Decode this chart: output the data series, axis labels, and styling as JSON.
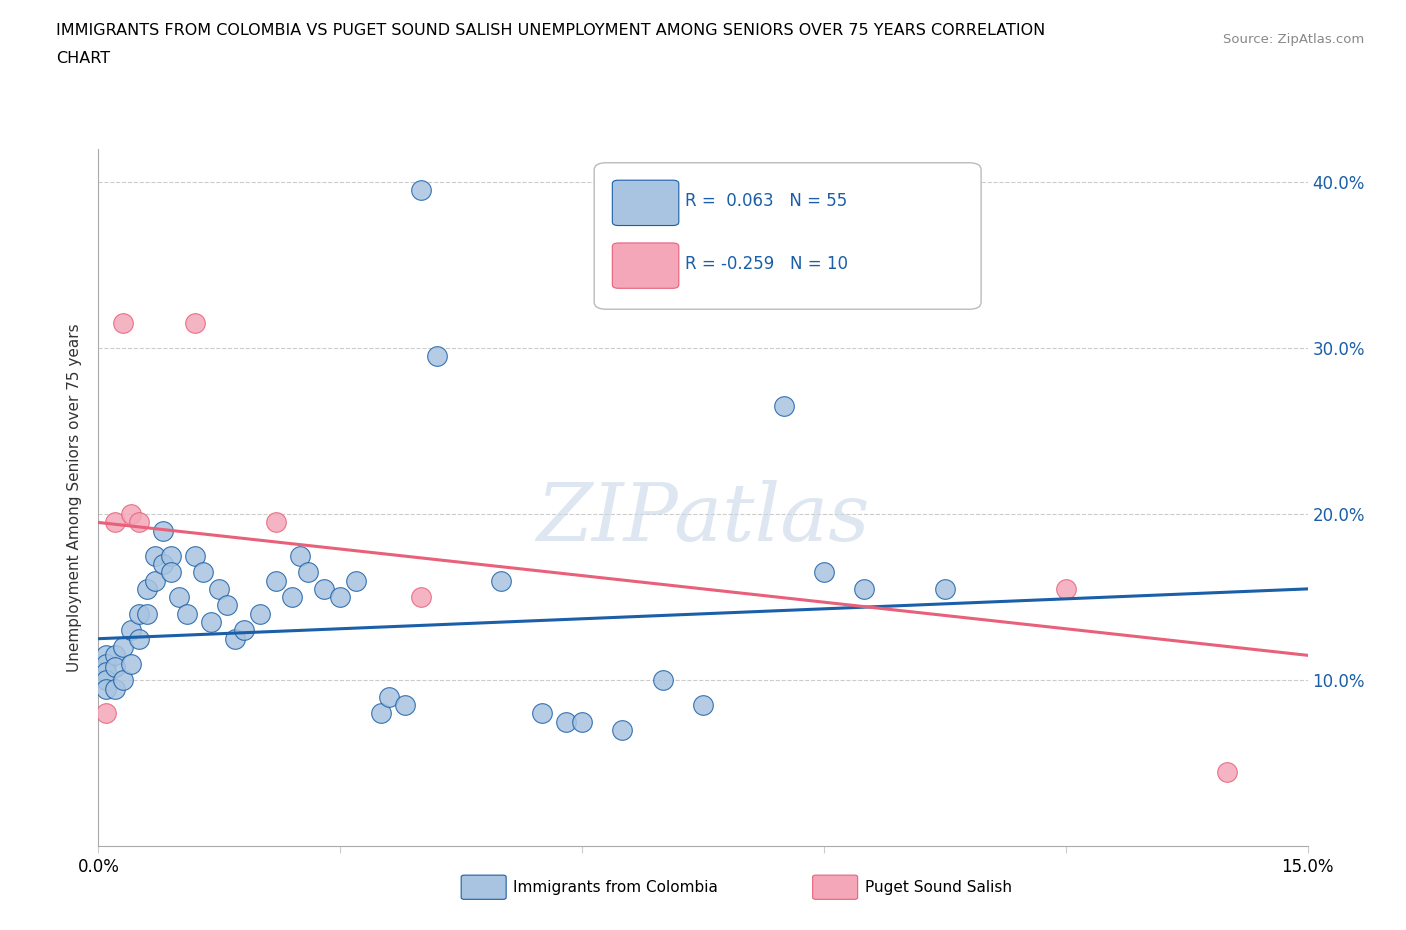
{
  "title_line1": "IMMIGRANTS FROM COLOMBIA VS PUGET SOUND SALISH UNEMPLOYMENT AMONG SENIORS OVER 75 YEARS CORRELATION",
  "title_line2": "CHART",
  "source": "Source: ZipAtlas.com",
  "ylabel": "Unemployment Among Seniors over 75 years",
  "xlim": [
    0.0,
    0.15
  ],
  "ylim": [
    0.0,
    0.42
  ],
  "xticks": [
    0.0,
    0.03,
    0.06,
    0.09,
    0.12,
    0.15
  ],
  "xticklabels": [
    "0.0%",
    "",
    "",
    "",
    "",
    "15.0%"
  ],
  "ytick_positions": [
    0.0,
    0.1,
    0.2,
    0.3,
    0.4
  ],
  "ytick_labels": [
    "",
    "10.0%",
    "20.0%",
    "30.0%",
    "40.0%"
  ],
  "legend1_label": "R =  0.063   N = 55",
  "legend2_label": "R = -0.259   N = 10",
  "legend_series1": "Immigrants from Colombia",
  "legend_series2": "Puget Sound Salish",
  "color1": "#a8c4e0",
  "color2": "#f4a7b9",
  "line_color1": "#1a5fa8",
  "line_color2": "#e8607a",
  "watermark": "ZIPatlas",
  "blue_scatter_x": [
    0.001,
    0.001,
    0.001,
    0.001,
    0.001,
    0.002,
    0.002,
    0.002,
    0.003,
    0.003,
    0.004,
    0.004,
    0.005,
    0.005,
    0.006,
    0.006,
    0.007,
    0.007,
    0.008,
    0.008,
    0.009,
    0.009,
    0.01,
    0.011,
    0.012,
    0.013,
    0.014,
    0.015,
    0.016,
    0.017,
    0.018,
    0.02,
    0.022,
    0.024,
    0.025,
    0.026,
    0.028,
    0.03,
    0.032,
    0.035,
    0.036,
    0.038,
    0.04,
    0.042,
    0.05,
    0.055,
    0.058,
    0.06,
    0.065,
    0.07,
    0.075,
    0.085,
    0.09,
    0.095,
    0.105
  ],
  "blue_scatter_y": [
    0.115,
    0.11,
    0.105,
    0.1,
    0.095,
    0.115,
    0.108,
    0.095,
    0.12,
    0.1,
    0.13,
    0.11,
    0.14,
    0.125,
    0.155,
    0.14,
    0.175,
    0.16,
    0.19,
    0.17,
    0.175,
    0.165,
    0.15,
    0.14,
    0.175,
    0.165,
    0.135,
    0.155,
    0.145,
    0.125,
    0.13,
    0.14,
    0.16,
    0.15,
    0.175,
    0.165,
    0.155,
    0.15,
    0.16,
    0.08,
    0.09,
    0.085,
    0.395,
    0.295,
    0.16,
    0.08,
    0.075,
    0.075,
    0.07,
    0.1,
    0.085,
    0.265,
    0.165,
    0.155,
    0.155
  ],
  "pink_scatter_x": [
    0.001,
    0.002,
    0.003,
    0.004,
    0.005,
    0.012,
    0.022,
    0.04,
    0.12,
    0.14
  ],
  "pink_scatter_y": [
    0.08,
    0.195,
    0.315,
    0.2,
    0.195,
    0.315,
    0.195,
    0.15,
    0.155,
    0.045
  ],
  "blue_line_x0": 0.0,
  "blue_line_x1": 0.15,
  "blue_line_y0": 0.125,
  "blue_line_y1": 0.155,
  "pink_line_x0": 0.0,
  "pink_line_x1": 0.15,
  "pink_line_y0": 0.195,
  "pink_line_y1": 0.115
}
